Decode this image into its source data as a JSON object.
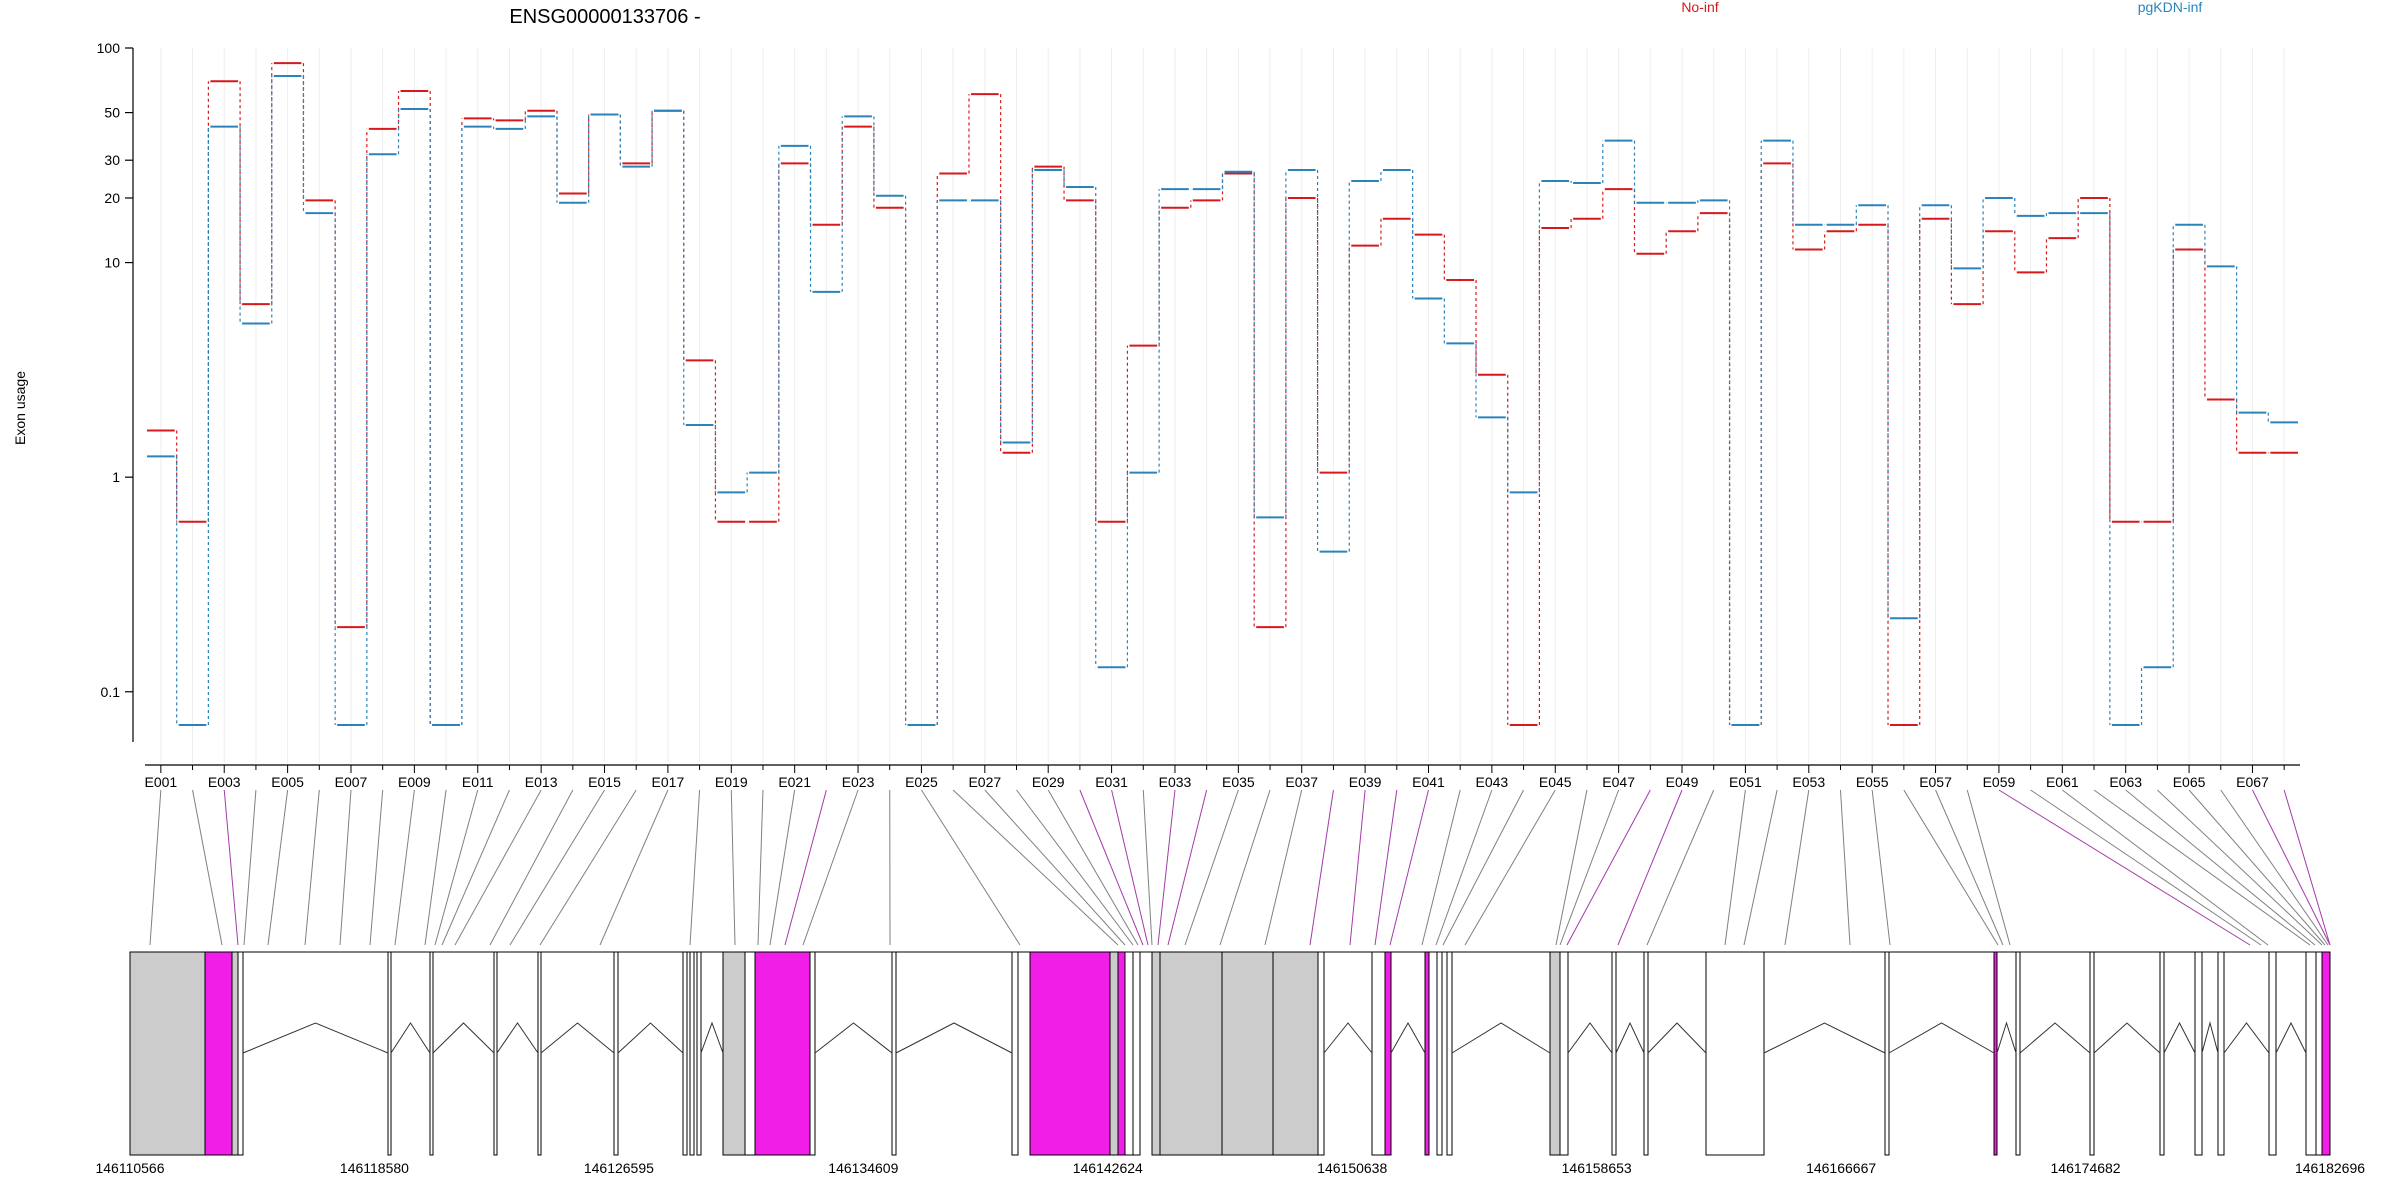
{
  "title": "ENSG00000133706 -",
  "ylabel": "Exon usage",
  "legend": [
    {
      "name": "No-inf",
      "color": "#d7191c"
    },
    {
      "name": "pgKDN-inf",
      "color": "#2b83ba"
    }
  ],
  "colors": {
    "exon_fill": "#cccccc",
    "highlight_fill": "#f01ee6",
    "connector": "#808080",
    "connector_highlight": "#a43aa8",
    "axis": "#000000",
    "vgrid": "#eeeeee"
  },
  "chart_data": {
    "type": "line",
    "scale": "log",
    "ylim": [
      0.07,
      100
    ],
    "yticks": [
      100,
      50,
      30,
      20,
      10,
      1,
      0.1
    ],
    "ytick_labels": [
      "100",
      "50",
      "30",
      "20",
      "10",
      "1",
      "0.1"
    ],
    "categories": [
      "E001",
      "E002",
      "E003",
      "E004",
      "E005",
      "E006",
      "E007",
      "E008",
      "E009",
      "E010",
      "E011",
      "E012",
      "E013",
      "E014",
      "E015",
      "E016",
      "E017",
      "E018",
      "E019",
      "E020",
      "E021",
      "E022",
      "E023",
      "E024",
      "E025",
      "E026",
      "E027",
      "E028",
      "E029",
      "E030",
      "E031",
      "E032",
      "E033",
      "E034",
      "E035",
      "E036",
      "E037",
      "E038",
      "E039",
      "E040",
      "E041",
      "E042",
      "E043",
      "E044",
      "E045",
      "E046",
      "E047",
      "E048",
      "E049",
      "E050",
      "E051",
      "E052",
      "E053",
      "E054",
      "E055",
      "E056",
      "E057",
      "E058",
      "E059",
      "E060",
      "E061",
      "E062",
      "E063",
      "E064",
      "E065",
      "E066",
      "E067",
      "E068"
    ],
    "xtick_labels": [
      "E001",
      "E003",
      "E005",
      "E007",
      "E009",
      "E011",
      "E013",
      "E015",
      "E017",
      "E019",
      "E021",
      "E023",
      "E025",
      "E027",
      "E029",
      "E031",
      "E033",
      "E035",
      "E037",
      "E039",
      "E041",
      "E043",
      "E045",
      "E047",
      "E049",
      "E051",
      "E053",
      "E055",
      "E057",
      "E059",
      "E061",
      "E063",
      "E065",
      "E067"
    ],
    "series": [
      {
        "name": "No-inf",
        "color": "#d7191c",
        "values": [
          1.65,
          0.62,
          70,
          6.4,
          85,
          19.5,
          0.2,
          42,
          63,
          0.07,
          47,
          46,
          51,
          21,
          49,
          29,
          51,
          3.5,
          0.62,
          0.62,
          29,
          15,
          43,
          18,
          0.07,
          26,
          61,
          1.3,
          28,
          19.5,
          0.62,
          4.1,
          18,
          19.5,
          26,
          0.2,
          20,
          1.05,
          12,
          16,
          13.5,
          8.3,
          3,
          0.07,
          14.5,
          16,
          22,
          11,
          14,
          17,
          0.07,
          29,
          11.5,
          14,
          15,
          0.07,
          16,
          6.4,
          14,
          9,
          13,
          20,
          0.62,
          0.62,
          11.5,
          2.3,
          1.3,
          1.3
        ]
      },
      {
        "name": "pgKDN-inf",
        "color": "#2b83ba",
        "values": [
          1.25,
          0.07,
          43,
          5.2,
          74,
          17,
          0.07,
          32,
          52,
          0.07,
          43,
          42,
          48,
          19,
          49,
          28,
          51,
          1.75,
          0.85,
          1.05,
          35,
          7.3,
          48,
          20.5,
          0.07,
          19.5,
          19.5,
          1.45,
          27,
          22.5,
          0.13,
          1.05,
          22,
          22,
          26.5,
          0.65,
          27,
          0.45,
          24,
          27,
          6.8,
          4.2,
          1.9,
          0.85,
          24,
          23.5,
          37,
          19,
          19,
          19.5,
          0.07,
          37,
          15,
          15,
          18.5,
          0.22,
          18.5,
          9.4,
          20,
          16.5,
          17,
          17,
          0.07,
          0.13,
          15,
          9.6,
          2,
          1.8
        ]
      }
    ]
  },
  "gene_model": {
    "coordinate_labels": [
      "146110566",
      "146118580",
      "146126595",
      "146134609",
      "146142624",
      "146150638",
      "146158653",
      "146166667",
      "146174682",
      "146182696"
    ]
  }
}
